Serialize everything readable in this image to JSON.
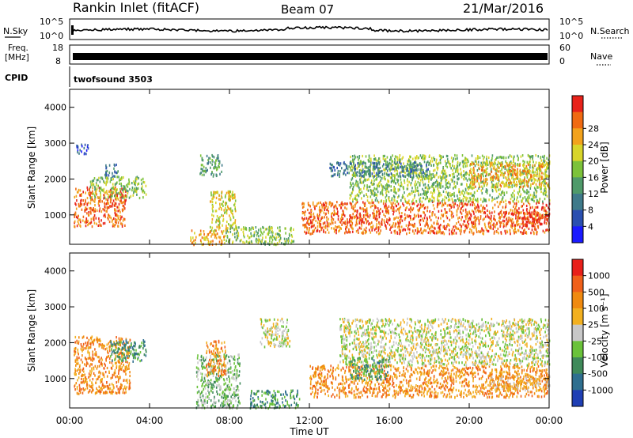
{
  "header": {
    "title": "Rankin Inlet (fitACF)",
    "beam": "Beam 07",
    "date": "21/Mar/2016"
  },
  "top_panels": {
    "nsky": {
      "label": "N.Sky",
      "yticks": [
        "10^5",
        "10^0"
      ]
    },
    "nsearch": {
      "label": "N.Search",
      "yticks": [
        "10^5",
        "10^0"
      ]
    },
    "freq": {
      "label_line1": "Freq.",
      "label_line2": "[MHz]",
      "yticks": [
        "18",
        "8"
      ]
    },
    "nave": {
      "label": "Nave",
      "yticks": [
        "60",
        "0"
      ]
    },
    "cpid": {
      "label": "CPID",
      "value": "twofsound 3503"
    }
  },
  "chart_data": [
    {
      "type": "heatmap",
      "panel": "power",
      "ylabel": "Slant Range [km]",
      "xlabel": "",
      "xticks": [
        "00:00",
        "04:00",
        "08:00",
        "12:00",
        "16:00",
        "20:00",
        "00:00"
      ],
      "yticks": [
        1000,
        2000,
        3000,
        4000
      ],
      "xlim_hours": [
        0,
        24
      ],
      "ylim_km": [
        180,
        4500
      ],
      "colorbar": {
        "label": "Power [dB]",
        "ticks": [
          "4",
          "8",
          "12",
          "16",
          "20",
          "24",
          "28"
        ],
        "colors": [
          "#1a1aff",
          "#2a4fb0",
          "#3f7a8a",
          "#4f9a6a",
          "#7cc23a",
          "#d8d52a",
          "#f2a21c",
          "#f06a12",
          "#e8221a"
        ]
      },
      "regions": [
        {
          "t": [
            0.2,
            2.8
          ],
          "r": [
            700,
            1800
          ],
          "level": 7
        },
        {
          "t": [
            1.0,
            3.8
          ],
          "r": [
            1500,
            2100
          ],
          "level": 4
        },
        {
          "t": [
            1.7,
            2.4
          ],
          "r": [
            2100,
            2450
          ],
          "level": 2
        },
        {
          "t": [
            0.3,
            0.9
          ],
          "r": [
            2700,
            3000
          ],
          "level": 1
        },
        {
          "t": [
            6.0,
            7.8
          ],
          "r": [
            200,
            600
          ],
          "level": 6
        },
        {
          "t": [
            6.5,
            7.6
          ],
          "r": [
            2100,
            2700
          ],
          "level": 3
        },
        {
          "t": [
            7.0,
            8.3
          ],
          "r": [
            600,
            1700
          ],
          "level": 5
        },
        {
          "t": [
            7.8,
            11.2
          ],
          "r": [
            200,
            700
          ],
          "level": 4
        },
        {
          "t": [
            11.6,
            24.0
          ],
          "r": [
            500,
            1400
          ],
          "level": 7
        },
        {
          "t": [
            14.0,
            24.0
          ],
          "r": [
            1400,
            2700
          ],
          "level": 4
        },
        {
          "t": [
            20.0,
            24.0
          ],
          "r": [
            1800,
            2500
          ],
          "level": 6
        },
        {
          "t": [
            21.5,
            24.0
          ],
          "r": [
            700,
            1100
          ],
          "level": 8
        },
        {
          "t": [
            13.0,
            18.0
          ],
          "r": [
            2100,
            2500
          ],
          "level": 2
        }
      ]
    },
    {
      "type": "heatmap",
      "panel": "velocity",
      "ylabel": "Slant Range [km]",
      "xlabel": "Time UT",
      "xticks": [
        "00:00",
        "04:00",
        "08:00",
        "12:00",
        "16:00",
        "20:00",
        "00:00"
      ],
      "yticks": [
        1000,
        2000,
        3000,
        4000
      ],
      "xlim_hours": [
        0,
        24
      ],
      "ylim_km": [
        180,
        4500
      ],
      "colorbar": {
        "label": "Velocity [m s⁻¹]",
        "ticks": [
          "1000",
          "500",
          "100",
          "25",
          "-25",
          "-100",
          "-500",
          "-1000"
        ],
        "colors": [
          "#1f3fb4",
          "#2f6f8f",
          "#3f8a5a",
          "#6ac23a",
          "#c8c8c8",
          "#f2b020",
          "#f08a10",
          "#f0601a",
          "#e8201a"
        ]
      },
      "regions": [
        {
          "t": [
            0.2,
            3.0
          ],
          "r": [
            600,
            2200
          ],
          "level": 6
        },
        {
          "t": [
            2.0,
            3.8
          ],
          "r": [
            1500,
            2100
          ],
          "level": 2
        },
        {
          "t": [
            6.3,
            8.5
          ],
          "r": [
            200,
            1700
          ],
          "level": 3
        },
        {
          "t": [
            6.8,
            7.8
          ],
          "r": [
            1100,
            2100
          ],
          "level": 6
        },
        {
          "t": [
            9.0,
            11.5
          ],
          "r": [
            200,
            700
          ],
          "level": 2
        },
        {
          "t": [
            12.0,
            24.0
          ],
          "r": [
            500,
            1400
          ],
          "level": 6
        },
        {
          "t": [
            13.5,
            24.0
          ],
          "r": [
            1400,
            2700
          ],
          "level": 4
        },
        {
          "t": [
            9.5,
            11.0
          ],
          "r": [
            1900,
            2700
          ],
          "level": 4
        },
        {
          "t": [
            14.0,
            16.0
          ],
          "r": [
            1000,
            1600
          ],
          "level": 2
        },
        {
          "t": [
            21.0,
            24.0
          ],
          "r": [
            700,
            1100
          ],
          "level": 5
        }
      ]
    }
  ]
}
